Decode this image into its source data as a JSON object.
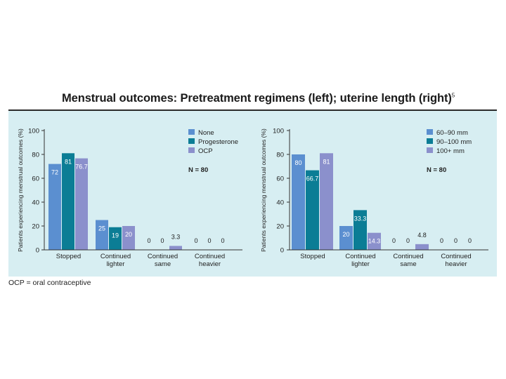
{
  "title": "Menstrual outcomes: Pretreatment regimens (left);  uterine length (right)",
  "title_ref": "5",
  "footnote": "OCP = oral contraceptive",
  "chart_data": [
    {
      "type": "bar",
      "ylabel": "Patients experiencing menstrual outcomes (%)",
      "ylim": [
        0,
        100
      ],
      "yticks": [
        0,
        20,
        40,
        60,
        80,
        100
      ],
      "categories": [
        "Stopped",
        "Continued\nlighter",
        "Continued\nsame",
        "Continued\nheavier"
      ],
      "series": [
        {
          "name": "None",
          "color": "#5b8fd0",
          "values": [
            72,
            25,
            0,
            0
          ],
          "labels": [
            "72",
            "25",
            "0",
            "0"
          ]
        },
        {
          "name": "Progesterone",
          "color": "#0b7d95",
          "values": [
            81,
            19,
            0,
            0
          ],
          "labels": [
            "81",
            "19",
            "0",
            "0"
          ]
        },
        {
          "name": "OCP",
          "color": "#8b90cc",
          "values": [
            76.7,
            20,
            3.3,
            0
          ],
          "labels": [
            "76.7",
            "20",
            "3.3",
            "0"
          ]
        }
      ],
      "note": "N = 80",
      "legend_position": "top-right"
    },
    {
      "type": "bar",
      "ylabel": "Patients experiencing menstrual outcomes (%)",
      "ylim": [
        0,
        100
      ],
      "yticks": [
        0,
        20,
        40,
        60,
        80,
        100
      ],
      "categories": [
        "Stopped",
        "Continued\nlighter",
        "Continued\nsame",
        "Continued\nheavier"
      ],
      "series": [
        {
          "name": "60–90 mm",
          "color": "#5b8fd0",
          "values": [
            80,
            20,
            0,
            0
          ],
          "labels": [
            "80",
            "20",
            "0",
            "0"
          ]
        },
        {
          "name": "90–100 mm",
          "color": "#0b7d95",
          "values": [
            66.7,
            33.3,
            0,
            0
          ],
          "labels": [
            "66.7",
            "33.3",
            "0",
            "0"
          ]
        },
        {
          "name": "100+ mm",
          "color": "#8b90cc",
          "values": [
            81,
            14.3,
            4.8,
            0
          ],
          "labels": [
            "81",
            "14.3",
            "4.8",
            "0"
          ]
        }
      ],
      "note": "N = 80",
      "legend_position": "top-right"
    }
  ]
}
